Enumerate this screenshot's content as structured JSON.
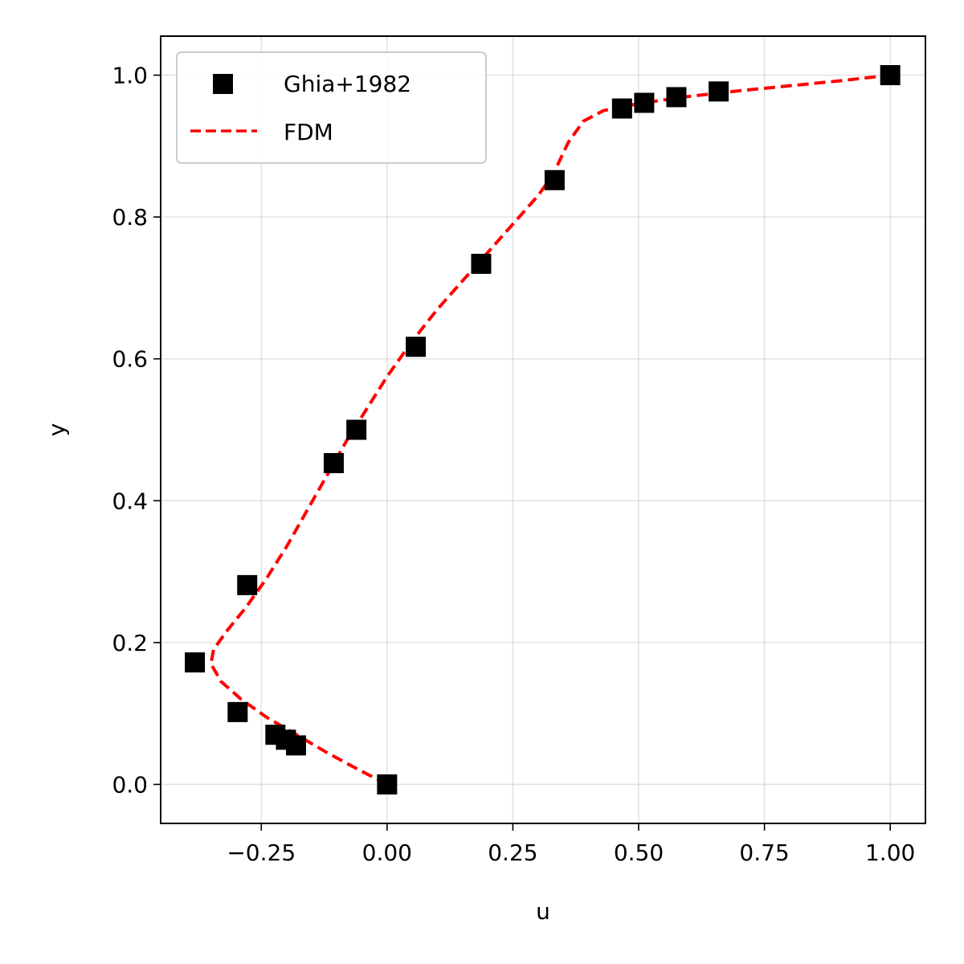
{
  "chart_data": {
    "type": "scatter",
    "title": "",
    "xlabel": "u",
    "ylabel": "y",
    "xlim": [
      -0.45,
      1.07
    ],
    "ylim": [
      -0.055,
      1.055
    ],
    "xticks": [
      -0.25,
      0.0,
      0.25,
      0.5,
      0.75,
      1.0
    ],
    "xtick_labels": [
      "−0.25",
      "0.00",
      "0.25",
      "0.50",
      "0.75",
      "1.00"
    ],
    "yticks": [
      0.0,
      0.2,
      0.4,
      0.6,
      0.8,
      1.0
    ],
    "ytick_labels": [
      "0.0",
      "0.2",
      "0.4",
      "0.6",
      "0.8",
      "1.0"
    ],
    "grid": true,
    "legend_position": "top-left",
    "series": [
      {
        "name": "Ghia+1982",
        "kind": "scatter",
        "marker": "square",
        "color": "#000000",
        "points": [
          {
            "x": 1.0,
            "y": 1.0
          },
          {
            "x": 0.659,
            "y": 0.977
          },
          {
            "x": 0.575,
            "y": 0.969
          },
          {
            "x": 0.511,
            "y": 0.961
          },
          {
            "x": 0.467,
            "y": 0.953
          },
          {
            "x": 0.333,
            "y": 0.852
          },
          {
            "x": 0.187,
            "y": 0.734
          },
          {
            "x": 0.057,
            "y": 0.617
          },
          {
            "x": -0.061,
            "y": 0.5
          },
          {
            "x": -0.106,
            "y": 0.453
          },
          {
            "x": -0.278,
            "y": 0.281
          },
          {
            "x": -0.382,
            "y": 0.172
          },
          {
            "x": -0.297,
            "y": 0.102
          },
          {
            "x": -0.222,
            "y": 0.07
          },
          {
            "x": -0.201,
            "y": 0.063
          },
          {
            "x": -0.181,
            "y": 0.055
          },
          {
            "x": 0.0,
            "y": 0.0
          }
        ]
      },
      {
        "name": "FDM",
        "kind": "line",
        "style": "dashed",
        "color": "#ff0000",
        "points": [
          {
            "x": 0.0,
            "y": 0.0
          },
          {
            "x": -0.06,
            "y": 0.022
          },
          {
            "x": -0.12,
            "y": 0.045
          },
          {
            "x": -0.18,
            "y": 0.07
          },
          {
            "x": -0.24,
            "y": 0.095
          },
          {
            "x": -0.29,
            "y": 0.12
          },
          {
            "x": -0.33,
            "y": 0.145
          },
          {
            "x": -0.35,
            "y": 0.17
          },
          {
            "x": -0.345,
            "y": 0.19
          },
          {
            "x": -0.32,
            "y": 0.215
          },
          {
            "x": -0.28,
            "y": 0.25
          },
          {
            "x": -0.24,
            "y": 0.29
          },
          {
            "x": -0.2,
            "y": 0.335
          },
          {
            "x": -0.16,
            "y": 0.385
          },
          {
            "x": -0.12,
            "y": 0.435
          },
          {
            "x": -0.08,
            "y": 0.485
          },
          {
            "x": -0.04,
            "y": 0.53
          },
          {
            "x": 0.0,
            "y": 0.575
          },
          {
            "x": 0.05,
            "y": 0.625
          },
          {
            "x": 0.1,
            "y": 0.67
          },
          {
            "x": 0.15,
            "y": 0.71
          },
          {
            "x": 0.2,
            "y": 0.75
          },
          {
            "x": 0.25,
            "y": 0.79
          },
          {
            "x": 0.3,
            "y": 0.83
          },
          {
            "x": 0.33,
            "y": 0.86
          },
          {
            "x": 0.36,
            "y": 0.905
          },
          {
            "x": 0.39,
            "y": 0.935
          },
          {
            "x": 0.43,
            "y": 0.95
          },
          {
            "x": 0.5,
            "y": 0.96
          },
          {
            "x": 0.6,
            "y": 0.97
          },
          {
            "x": 0.7,
            "y": 0.978
          },
          {
            "x": 0.8,
            "y": 0.985
          },
          {
            "x": 0.9,
            "y": 0.992
          },
          {
            "x": 1.0,
            "y": 1.0
          }
        ]
      }
    ]
  }
}
